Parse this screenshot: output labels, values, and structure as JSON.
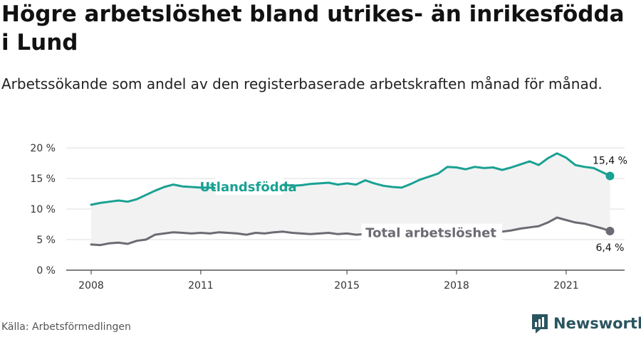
{
  "title": "Högre arbetslöshet bland utrikes- än inrikesfödda i Lund",
  "subtitle": "Arbetssökande som andel av den registerbaserade arbetskraften månad för månad.",
  "source": "Källa: Arbetsförmedlingen",
  "brand": "Newsworthy",
  "colors": {
    "accent": "#1aa192",
    "total": "#6b6b73",
    "band": "#f2f2f2",
    "grid": "#dddddd",
    "brand": "#2b5560"
  },
  "chart_data": {
    "type": "line",
    "x_ticks": [
      2008,
      2011,
      2015,
      2018,
      2021
    ],
    "y_ticks": [
      0,
      5,
      10,
      15,
      20
    ],
    "y_tick_labels": [
      "0 %",
      "5 %",
      "10 %",
      "15 %",
      "20 %"
    ],
    "xlim": [
      2008,
      2022.6
    ],
    "ylim": [
      0,
      20
    ],
    "band_between_series": true,
    "series": [
      {
        "name": "Utlandsfödda",
        "color": "#1aa192",
        "end_label": "15,4 %",
        "points": [
          [
            2008.0,
            10.7
          ],
          [
            2008.25,
            11.0
          ],
          [
            2008.5,
            11.2
          ],
          [
            2008.75,
            11.4
          ],
          [
            2009.0,
            11.2
          ],
          [
            2009.25,
            11.6
          ],
          [
            2009.5,
            12.3
          ],
          [
            2009.75,
            13.0
          ],
          [
            2010.0,
            13.6
          ],
          [
            2010.25,
            14.0
          ],
          [
            2010.5,
            13.7
          ],
          [
            2010.75,
            13.6
          ],
          [
            2011.0,
            13.5
          ],
          [
            2011.25,
            13.5
          ],
          [
            2011.5,
            13.4
          ],
          [
            2011.75,
            13.5
          ],
          [
            2012.0,
            13.6
          ],
          [
            2012.25,
            13.7
          ],
          [
            2012.5,
            13.5
          ],
          [
            2012.75,
            13.6
          ],
          [
            2013.0,
            13.8
          ],
          [
            2013.25,
            14.0
          ],
          [
            2013.5,
            13.8
          ],
          [
            2013.75,
            13.9
          ],
          [
            2014.0,
            14.1
          ],
          [
            2014.25,
            14.2
          ],
          [
            2014.5,
            14.3
          ],
          [
            2014.75,
            14.0
          ],
          [
            2015.0,
            14.2
          ],
          [
            2015.25,
            14.0
          ],
          [
            2015.5,
            14.7
          ],
          [
            2015.75,
            14.2
          ],
          [
            2016.0,
            13.8
          ],
          [
            2016.25,
            13.6
          ],
          [
            2016.5,
            13.5
          ],
          [
            2016.75,
            14.1
          ],
          [
            2017.0,
            14.8
          ],
          [
            2017.25,
            15.3
          ],
          [
            2017.5,
            15.8
          ],
          [
            2017.75,
            16.9
          ],
          [
            2018.0,
            16.8
          ],
          [
            2018.25,
            16.5
          ],
          [
            2018.5,
            16.9
          ],
          [
            2018.75,
            16.7
          ],
          [
            2019.0,
            16.8
          ],
          [
            2019.25,
            16.4
          ],
          [
            2019.5,
            16.8
          ],
          [
            2019.75,
            17.3
          ],
          [
            2020.0,
            17.8
          ],
          [
            2020.25,
            17.2
          ],
          [
            2020.5,
            18.3
          ],
          [
            2020.75,
            19.1
          ],
          [
            2021.0,
            18.4
          ],
          [
            2021.25,
            17.2
          ],
          [
            2021.5,
            16.9
          ],
          [
            2021.75,
            16.7
          ],
          [
            2022.0,
            16.0
          ],
          [
            2022.2,
            15.4
          ]
        ]
      },
      {
        "name": "Total arbetslöshet",
        "color": "#6b6b73",
        "end_label": "6,4 %",
        "points": [
          [
            2008.0,
            4.2
          ],
          [
            2008.25,
            4.1
          ],
          [
            2008.5,
            4.4
          ],
          [
            2008.75,
            4.5
          ],
          [
            2009.0,
            4.3
          ],
          [
            2009.25,
            4.8
          ],
          [
            2009.5,
            5.0
          ],
          [
            2009.75,
            5.8
          ],
          [
            2010.0,
            6.0
          ],
          [
            2010.25,
            6.2
          ],
          [
            2010.5,
            6.1
          ],
          [
            2010.75,
            6.0
          ],
          [
            2011.0,
            6.1
          ],
          [
            2011.25,
            6.0
          ],
          [
            2011.5,
            6.2
          ],
          [
            2011.75,
            6.1
          ],
          [
            2012.0,
            6.0
          ],
          [
            2012.25,
            5.8
          ],
          [
            2012.5,
            6.1
          ],
          [
            2012.75,
            6.0
          ],
          [
            2013.0,
            6.2
          ],
          [
            2013.25,
            6.3
          ],
          [
            2013.5,
            6.1
          ],
          [
            2013.75,
            6.0
          ],
          [
            2014.0,
            5.9
          ],
          [
            2014.25,
            6.0
          ],
          [
            2014.5,
            6.1
          ],
          [
            2014.75,
            5.9
          ],
          [
            2015.0,
            6.0
          ],
          [
            2015.25,
            5.8
          ],
          [
            2015.5,
            5.9
          ],
          [
            2015.75,
            5.7
          ],
          [
            2016.0,
            5.8
          ],
          [
            2016.25,
            5.9
          ],
          [
            2016.5,
            6.0
          ],
          [
            2016.75,
            6.0
          ],
          [
            2017.0,
            6.1
          ],
          [
            2017.25,
            6.0
          ],
          [
            2017.5,
            6.1
          ],
          [
            2017.75,
            6.2
          ],
          [
            2018.0,
            6.1
          ],
          [
            2018.25,
            6.0
          ],
          [
            2018.5,
            6.2
          ],
          [
            2018.75,
            6.3
          ],
          [
            2019.0,
            6.2
          ],
          [
            2019.25,
            6.3
          ],
          [
            2019.5,
            6.5
          ],
          [
            2019.75,
            6.8
          ],
          [
            2020.0,
            7.0
          ],
          [
            2020.25,
            7.2
          ],
          [
            2020.5,
            7.8
          ],
          [
            2020.75,
            8.6
          ],
          [
            2021.0,
            8.2
          ],
          [
            2021.25,
            7.8
          ],
          [
            2021.5,
            7.6
          ],
          [
            2021.75,
            7.2
          ],
          [
            2022.0,
            6.8
          ],
          [
            2022.2,
            6.4
          ]
        ]
      }
    ]
  }
}
